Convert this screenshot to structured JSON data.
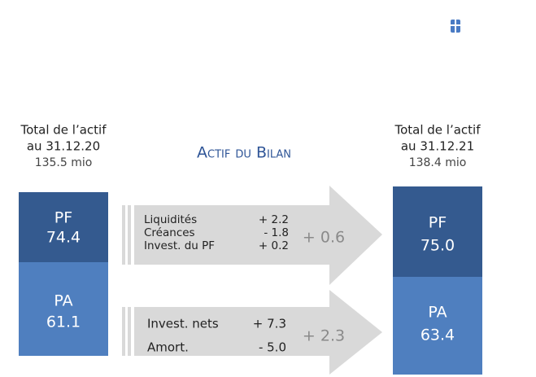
{
  "title": "Actif du Bilan",
  "left": {
    "header": [
      "Total de l’actif",
      "au 31.12.20",
      "135.5 mio"
    ],
    "pf": {
      "label": "PF",
      "value": "74.4"
    },
    "pa": {
      "label": "PA",
      "value": "61.1"
    }
  },
  "right": {
    "header": [
      "Total de l’actif",
      "au 31.12.21",
      "138.4 mio"
    ],
    "pf": {
      "label": "PF",
      "value": "75.0"
    },
    "pa": {
      "label": "PA",
      "value": "63.4"
    }
  },
  "pf_changes": {
    "items": [
      {
        "label": "Liquidités",
        "value": "+ 2.2"
      },
      {
        "label": "Créances",
        "value": "- 1.8"
      },
      {
        "label": "Invest. du PF",
        "value": "+ 0.2"
      }
    ],
    "total": "+ 0.6"
  },
  "pa_changes": {
    "items": [
      {
        "label": "Invest. nets",
        "value": "+ 7.3"
      },
      {
        "label": "Amort.",
        "value": "- 5.0"
      }
    ],
    "total": "+ 2.3"
  }
}
